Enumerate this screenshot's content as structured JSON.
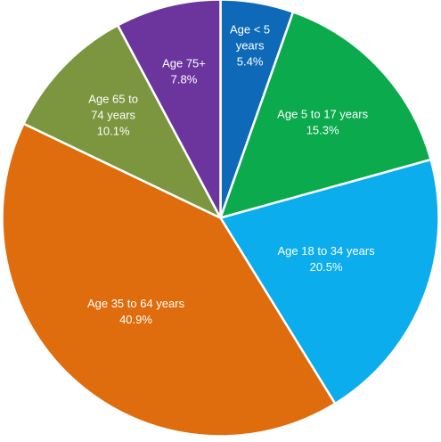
{
  "chart_data": {
    "type": "pie",
    "title": "",
    "slices": [
      {
        "label": [
          "Age < 5",
          "years"
        ],
        "value": 5.4,
        "value_label": "5.4%",
        "color": "#0E6AB8"
      },
      {
        "label": [
          "Age 5 to 17 years"
        ],
        "value": 15.3,
        "value_label": "15.3%",
        "color": "#0BAA4D"
      },
      {
        "label": [
          "Age 18 to 34 years"
        ],
        "value": 20.5,
        "value_label": "20.5%",
        "color": "#0CADEC"
      },
      {
        "label": [
          "Age 35 to 64 years"
        ],
        "value": 40.9,
        "value_label": "40.9%",
        "color": "#DF6C0D"
      },
      {
        "label": [
          "Age 65 to",
          "74 years"
        ],
        "value": 10.1,
        "value_label": "10.1%",
        "color": "#7B963F"
      },
      {
        "label": [
          "Age 75+"
        ],
        "value": 7.8,
        "value_label": "7.8%",
        "color": "#6C359E"
      }
    ]
  }
}
